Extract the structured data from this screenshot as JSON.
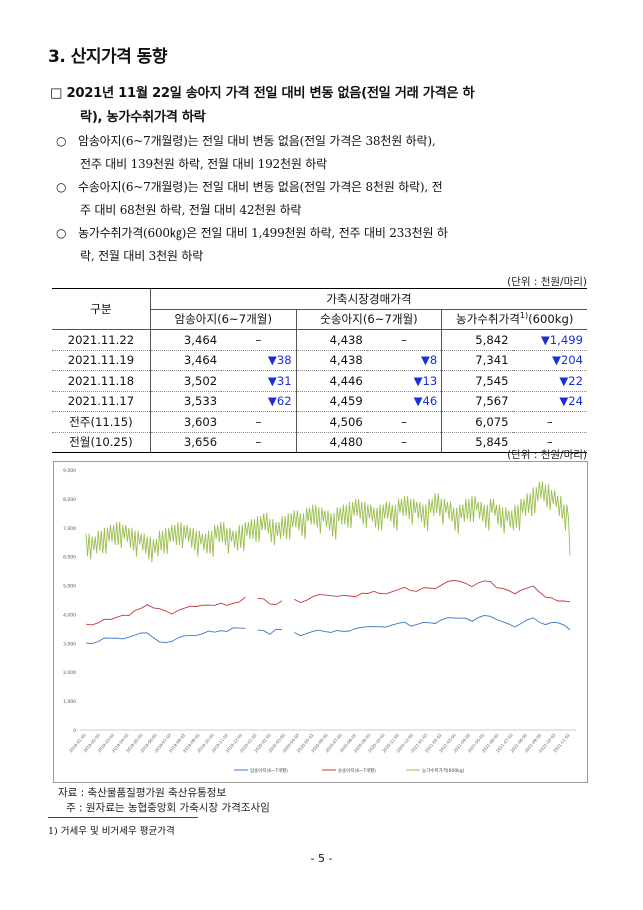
{
  "section_title": "3. 산지가격 동향",
  "headline": {
    "marker": "□",
    "line1": "2021년 11월 22일 송아지 가격 전일 대비 변동 없음(전일 거래 가격은 하",
    "line2": "락), 농가수취가격 하락"
  },
  "bullets": [
    {
      "marker": "○",
      "line1": "암송아지(6~7개월령)는 전일 대비 변동 없음(전일 가격은 38천원 하락),",
      "line2": "전주 대비 139천원 하락, 전월 대비 192천원 하락"
    },
    {
      "marker": "○",
      "line1": "수송아지(6~7개월령)는 전일 대비 변동 없음(전일 가격은 8천원 하락), 전",
      "line2": "주 대비 68천원 하락, 전월 대비 42천원 하락"
    },
    {
      "marker": "○",
      "line1": "농가수취가격(600㎏)은 전일 대비 1,499천원 하락, 전주 대비 233천원 하",
      "line2": "락, 전월 대비 3천원 하락"
    }
  ],
  "unit_label": "(단위 : 천원/마리)",
  "table": {
    "header_left": "구분",
    "header_group": "가축시장경매가격",
    "col_female": "암송아지(6~7개월)",
    "col_male": "숫송아지(6~7개월)",
    "col_farm": "농가수취가격",
    "col_farm_sup": "1)",
    "col_farm_tail": "(600kg)",
    "rows": [
      {
        "date": "2021.11.22",
        "female": "3,464",
        "female_chg": "–",
        "male": "4,438",
        "male_chg": "–",
        "farm": "5,842",
        "farm_chg": "▼1,499"
      },
      {
        "date": "2021.11.19",
        "female": "3,464",
        "female_chg": "▼38",
        "male": "4,438",
        "male_chg": "▼8",
        "farm": "7,341",
        "farm_chg": "▼204"
      },
      {
        "date": "2021.11.18",
        "female": "3,502",
        "female_chg": "▼31",
        "male": "4,446",
        "male_chg": "▼13",
        "farm": "7,545",
        "farm_chg": "▼22"
      },
      {
        "date": "2021.11.17",
        "female": "3,533",
        "female_chg": "▼62",
        "male": "4,459",
        "male_chg": "▼46",
        "farm": "7,567",
        "farm_chg": "▼24"
      },
      {
        "date": "전주(11.15)",
        "female": "3,603",
        "female_chg": "–",
        "male": "4,506",
        "male_chg": "–",
        "farm": "6,075",
        "farm_chg": "–"
      },
      {
        "date": "전월(10.25)",
        "female": "3,656",
        "female_chg": "–",
        "male": "4,480",
        "male_chg": "–",
        "farm": "5,845",
        "farm_chg": "–"
      }
    ]
  },
  "chart_unit_label": "(단위 : 천원/마리)",
  "chart_data": {
    "type": "line",
    "ylim": [
      0,
      9000
    ],
    "y_ticks": [
      "0",
      "1,000",
      "2,000",
      "3,000",
      "4,000",
      "5,000",
      "6,000",
      "7,000",
      "8,000",
      "9,000"
    ],
    "x_ticks": [
      "2019-01-02",
      "2019-02-02",
      "2019-03-02",
      "2019-04-02",
      "2019-05-02",
      "2019-06-02",
      "2019-07-02",
      "2019-08-02",
      "2019-09-02",
      "2019-10-02",
      "2019-11-02",
      "2019-12-02",
      "2020-01-02",
      "2020-02-02",
      "2020-03-02",
      "2020-04-02",
      "2020-05-02",
      "2020-06-02",
      "2020-07-02",
      "2020-08-02",
      "2020-09-02",
      "2020-10-02",
      "2020-11-02",
      "2020-12-02",
      "2021-01-02",
      "2021-02-02",
      "2021-03-02",
      "2021-04-02",
      "2021-05-02",
      "2021-06-02",
      "2021-07-02",
      "2021-08-02",
      "2021-09-02",
      "2021-10-02",
      "2021-11-02"
    ],
    "series": [
      {
        "name": "암송아지(6~7개월)",
        "color": "#3a78c4",
        "values": [
          3050,
          3000,
          3050,
          3150,
          3200,
          3180,
          3130,
          3250,
          3300,
          3350,
          3320,
          3220,
          3050,
          3000,
          3100,
          3200,
          3250,
          3230,
          3300,
          3330,
          3400,
          3420,
          3450,
          3400,
          3500,
          3550,
          3520,
          3600,
          3500,
          3450,
          3300,
          3450,
          3500,
          3550,
          3350,
          3300,
          3350,
          3400,
          3420,
          3430,
          3380,
          3420,
          3450,
          3440,
          3500,
          3520,
          3600,
          3580,
          3550,
          3600,
          3650,
          3680,
          3700,
          3620,
          3650,
          3700,
          3750,
          3700,
          3800,
          3850,
          3900,
          3870,
          3850,
          3800,
          3900,
          3950,
          3900,
          3850,
          3750,
          3650,
          3600,
          3700,
          3800,
          3850,
          3750,
          3650,
          3700,
          3750,
          3650,
          3464
        ],
        "gaps": [
          27,
          33
        ]
      },
      {
        "name": "숫송아지(6~7개월)",
        "color": "#c43a3a",
        "values": [
          3700,
          3650,
          3700,
          3800,
          3850,
          3900,
          3950,
          4000,
          4150,
          4200,
          4300,
          4250,
          4200,
          4100,
          4050,
          4150,
          4200,
          4250,
          4300,
          4320,
          4300,
          4350,
          4400,
          4300,
          4350,
          4450,
          4600,
          4650,
          4600,
          4550,
          4350,
          4300,
          4500,
          4550,
          4500,
          4450,
          4500,
          4600,
          4650,
          4700,
          4650,
          4600,
          4700,
          4650,
          4600,
          4700,
          4750,
          4800,
          4700,
          4750,
          4800,
          4850,
          4900,
          4850,
          4800,
          4900,
          4950,
          4900,
          5000,
          5100,
          5200,
          5150,
          5050,
          5000,
          5100,
          5150,
          5100,
          4950,
          4900,
          4800,
          4750,
          4850,
          4900,
          4950,
          4800,
          4600,
          4550,
          4500,
          4480,
          4438
        ],
        "gaps": [
          27,
          33
        ]
      },
      {
        "name": "농가수취가격(600kg)",
        "color": "#9cbf4e",
        "values": [
          6600,
          6500,
          6700,
          6800,
          6900,
          7000,
          6900,
          6800,
          6700,
          6600,
          6500,
          6400,
          6700,
          6800,
          6900,
          7000,
          6900,
          6800,
          6700,
          6600,
          6700,
          6900,
          7000,
          6800,
          6700,
          6900,
          7000,
          7100,
          7200,
          7300,
          7100,
          7000,
          7200,
          7300,
          7400,
          7300,
          7500,
          7600,
          7500,
          7400,
          7300,
          7500,
          7600,
          7700,
          7800,
          7700,
          7600,
          7500,
          7600,
          7700,
          7600,
          7800,
          7900,
          7800,
          7700,
          7600,
          7800,
          8000,
          7800,
          7700,
          7500,
          7600,
          7800,
          7900,
          7700,
          7600,
          7800,
          7600,
          7500,
          7400,
          7600,
          7800,
          8000,
          8200,
          8400,
          8300,
          8100,
          7900,
          7600,
          5842
        ],
        "band": 700
      },
      {
        "name": "",
        "color": "#000",
        "values": []
      }
    ],
    "legend_placement": "bottom"
  },
  "sources": {
    "line1": "자료 : 축산물품질평가원 축산유통정보",
    "line2": "주 : 원자료는 농협중앙회 가축시장 가격조사임"
  },
  "footnote": "1) 거세우 및 비거세우 평균가격",
  "page_number": "- 5 -"
}
